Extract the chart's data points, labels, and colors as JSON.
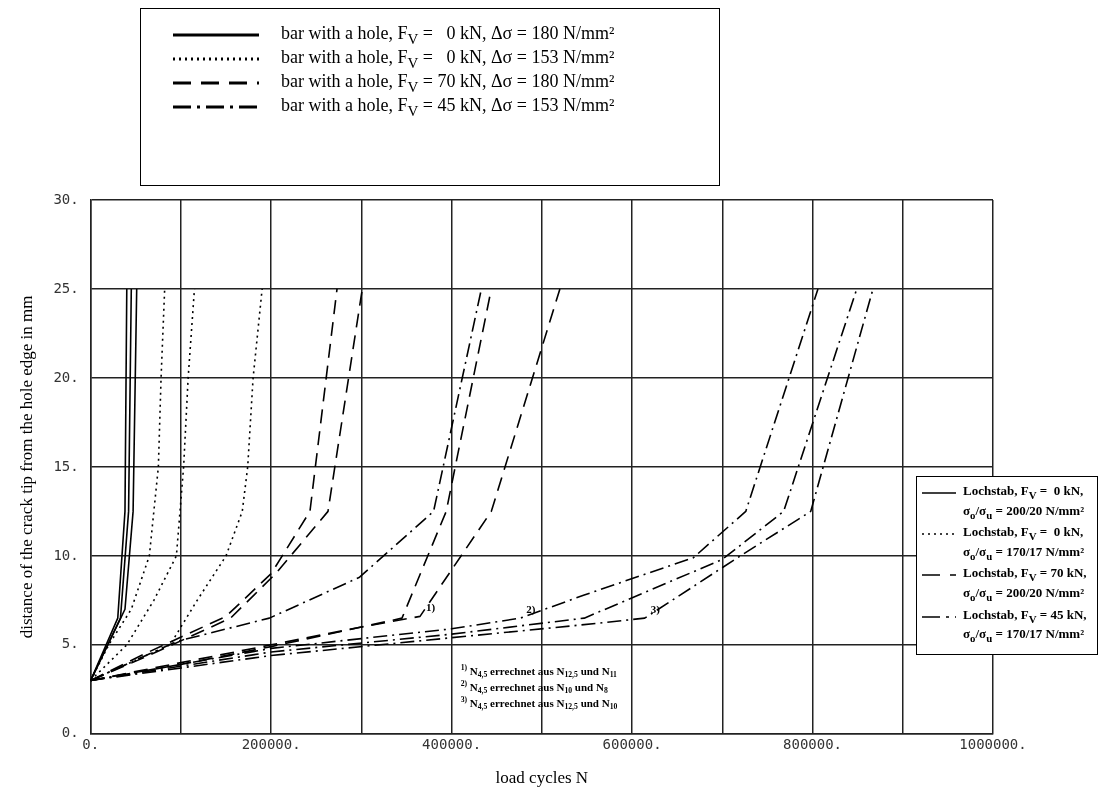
{
  "chart_data": {
    "type": "line",
    "xlabel": "load cycles N",
    "ylabel": "distance of the crack tip from the hole edge in mm",
    "xlim": [
      0,
      1000000
    ],
    "ylim": [
      0,
      30
    ],
    "xticks": [
      {
        "value": 0,
        "label": "0."
      },
      {
        "value": 100000,
        "label": null
      },
      {
        "value": 200000,
        "label": "200000."
      },
      {
        "value": 300000,
        "label": null
      },
      {
        "value": 400000,
        "label": "400000."
      },
      {
        "value": 500000,
        "label": null
      },
      {
        "value": 600000,
        "label": "600000."
      },
      {
        "value": 700000,
        "label": null
      },
      {
        "value": 800000,
        "label": "800000."
      },
      {
        "value": 900000,
        "label": null
      },
      {
        "value": 1000000,
        "label": "1000000."
      }
    ],
    "yticks": [
      {
        "value": 0,
        "label": "0."
      },
      {
        "value": 5,
        "label": "5."
      },
      {
        "value": 10,
        "label": "10."
      },
      {
        "value": 15,
        "label": "15."
      },
      {
        "value": 20,
        "label": "20."
      },
      {
        "value": 25,
        "label": "25."
      },
      {
        "value": 30,
        "label": "30."
      }
    ],
    "grid": true,
    "legend": "top",
    "marker": "none",
    "series": [
      {
        "name": "bar with a hole, F$_{V}$ =   0 kN, Δσ = 180 N/mm²",
        "color": "#000000",
        "line_style": "solid",
        "x": [
          0,
          30000,
          38000,
          40000
        ],
        "values": [
          3,
          6.5,
          12.5,
          25
        ]
      },
      {
        "color": "#000000",
        "line_style": "solid",
        "x": [
          0,
          33000,
          42000,
          45000
        ],
        "values": [
          3,
          6.5,
          12.5,
          25
        ]
      },
      {
        "color": "#000000",
        "line_style": "solid",
        "x": [
          0,
          38000,
          47000,
          51000
        ],
        "values": [
          3,
          7,
          12.5,
          25
        ]
      },
      {
        "name": "bar with a hole, F$_{V}$ =   0 kN, Δσ = 153 N/mm²",
        "color": "#000000",
        "line_style": "dotted",
        "x": [
          0,
          20000,
          45000,
          65000,
          75000,
          78000,
          82000
        ],
        "values": [
          3,
          5,
          7,
          10,
          15,
          20,
          25
        ]
      },
      {
        "color": "#000000",
        "line_style": "dotted",
        "x": [
          0,
          40000,
          70000,
          95000,
          103000,
          108000,
          115000
        ],
        "values": [
          3,
          5,
          7.5,
          10,
          15,
          20,
          25
        ]
      },
      {
        "color": "#000000",
        "line_style": "dotted",
        "x": [
          0,
          88000,
          118000,
          150000,
          168000,
          174000,
          180000,
          190000
        ],
        "values": [
          3,
          5,
          7.5,
          10,
          12.5,
          15,
          20,
          25
        ]
      },
      {
        "name": "bar with a hole, F$_{V}$ = 70 kN, Δσ = 180 N/mm²",
        "color": "#000000",
        "line_style": "dashed",
        "x": [
          0,
          60000,
          150000,
          200000,
          243000,
          273000
        ],
        "values": [
          3,
          4.5,
          6.6,
          9,
          12.5,
          25
        ]
      },
      {
        "color": "#000000",
        "line_style": "dashed",
        "x": [
          0,
          60000,
          155000,
          205000,
          263000,
          301000
        ],
        "values": [
          3,
          4.3,
          6.5,
          9,
          12.5,
          25
        ]
      },
      {
        "color": "#000000",
        "line_style": "dashed",
        "x": [
          0,
          100000,
          200000,
          300000,
          345000,
          394000,
          444000
        ],
        "values": [
          3,
          4,
          5,
          6,
          6.5,
          12.5,
          25
        ]
      },
      {
        "color": "#000000",
        "line_style": "dashed",
        "x": [
          0,
          100000,
          200000,
          300000,
          365000,
          444000,
          520000
        ],
        "values": [
          3,
          3.9,
          4.9,
          6,
          6.6,
          12.5,
          25
        ]
      },
      {
        "name": "bar with a hole, F$_{V}$ = 45 kN, Δσ = 153 N/mm²",
        "color": "#000000",
        "line_style": "dashdot",
        "x": [
          0,
          96000,
          198000,
          298000,
          380000,
          433000
        ],
        "values": [
          3,
          5.2,
          6.5,
          8.8,
          12.5,
          25
        ]
      },
      {
        "color": "#000000",
        "line_style": "dashdot",
        "x": [
          0,
          200000,
          400000,
          476000,
          547000,
          668000,
          726000,
          806000
        ],
        "values": [
          3,
          4.8,
          5.9,
          6.5,
          7.8,
          9.9,
          12.5,
          25
        ]
      },
      {
        "color": "#000000",
        "line_style": "dashdot",
        "x": [
          0,
          200000,
          400000,
          547000,
          700000,
          768000,
          849000
        ],
        "values": [
          3,
          4.6,
          5.6,
          6.5,
          9.8,
          12.5,
          25
        ]
      },
      {
        "color": "#000000",
        "line_style": "dashdot",
        "x": [
          0,
          200000,
          400000,
          560000,
          614000,
          720000,
          798000,
          867000
        ],
        "values": [
          3,
          4.4,
          5.4,
          6.2,
          6.5,
          10,
          12.5,
          25
        ]
      }
    ],
    "annotations": [
      "$^{1)}$ N$_{4,5}$ errechnet aus N$_{12,5}$ und N$_{11}$",
      "$^{2)}$ N$_{4,5}$ errechnet aus N$_{10}$ und N$_{8}$",
      "$^{3)}$ N$_{4,5}$ errechnet aus N$_{12,5}$ und N$_{10}$",
      "Lochstab, F$_{V}$ =  0 kN, σ$_{o}$/σ$_{u}$ = 200/20 N/mm²",
      "Lochstab, F$_{V}$ =  0 kN, σ$_{o}$/σ$_{u}$ = 170/17 N/mm²",
      "Lochstab, F$_{V}$ = 70 kN, σ$_{o}$/σ$_{u}$ = 200/20 N/mm²",
      "Lochstab, F$_{V}$ = 45 kN, σ$_{o}$/σ$_{u}$ = 170/17 N/mm²",
      {
        "text": "1)",
        "x": 365000,
        "y": 6.6
      },
      {
        "text": "2)",
        "x": 476000,
        "y": 6.5
      },
      {
        "text": "3)",
        "x": 614000,
        "y": 6.5
      }
    ]
  }
}
